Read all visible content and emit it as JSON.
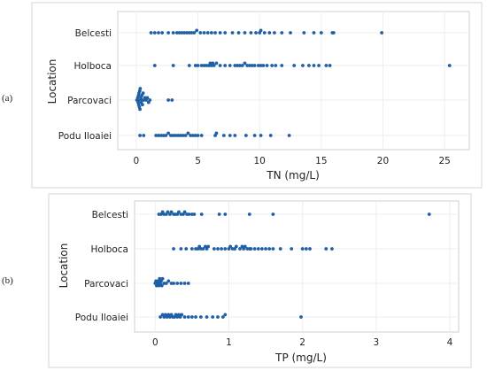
{
  "colors": {
    "points": "#1f5fa6"
  },
  "chart_data": [
    {
      "type": "scatter",
      "panel_label": "(a)",
      "xlabel": "TN (mg/L)",
      "ylabel": "Location",
      "xlim": [
        -1.5,
        27
      ],
      "xticks": [
        "0",
        "5",
        "10",
        "15",
        "20",
        "25"
      ],
      "categories": [
        "Belcesti",
        "Holboca",
        "Parcovaci",
        "Podu Iloaiei"
      ],
      "grid": true,
      "series": [
        {
          "category": "Belcesti",
          "values": [
            1.2,
            1.5,
            1.8,
            2.1,
            2.6,
            3.0,
            3.3,
            3.5,
            3.7,
            3.9,
            4.1,
            4.3,
            4.5,
            4.7,
            4.9,
            5.2,
            5.5,
            5.8,
            6.1,
            6.4,
            6.8,
            7.2,
            7.8,
            8.3,
            8.8,
            9.3,
            9.7,
            10.0,
            10.1,
            10.4,
            10.8,
            11.2,
            11.8,
            12.5,
            13.6,
            14.4,
            15.0,
            15.9,
            16.0,
            19.9
          ]
        },
        {
          "category": "Holboca",
          "values": [
            1.5,
            3.0,
            4.3,
            4.8,
            5.0,
            5.3,
            5.5,
            5.7,
            5.9,
            6.0,
            6.1,
            6.2,
            6.3,
            6.5,
            6.8,
            7.2,
            7.6,
            8.0,
            8.2,
            8.4,
            8.6,
            8.8,
            9.0,
            9.2,
            9.4,
            9.6,
            9.9,
            10.1,
            10.3,
            10.6,
            11.0,
            11.3,
            11.8,
            12.8,
            13.5,
            14.0,
            14.4,
            14.8,
            15.4,
            15.7,
            25.4
          ]
        },
        {
          "category": "Parcovaci",
          "values": [
            0.05,
            0.1,
            0.12,
            0.15,
            0.18,
            0.2,
            0.22,
            0.25,
            0.28,
            0.3,
            0.32,
            0.35,
            0.38,
            0.4,
            0.45,
            0.5,
            0.55,
            0.6,
            0.7,
            0.8,
            0.9,
            1.0,
            1.1,
            2.6,
            2.9
          ]
        },
        {
          "category": "Podu Iloaiei",
          "values": [
            0.3,
            0.6,
            1.6,
            1.8,
            2.0,
            2.2,
            2.4,
            2.6,
            2.8,
            3.0,
            3.2,
            3.4,
            3.6,
            3.8,
            4.0,
            4.2,
            4.4,
            4.6,
            4.8,
            5.0,
            5.3,
            6.4,
            6.5,
            7.1,
            7.6,
            8.0,
            8.9,
            9.6,
            10.1,
            10.9,
            12.4
          ]
        }
      ]
    },
    {
      "type": "scatter",
      "panel_label": "(b)",
      "xlabel": "TP (mg/L)",
      "ylabel": "Location",
      "xlim": [
        -0.28,
        4.12
      ],
      "xticks": [
        "0",
        "1",
        "2",
        "3",
        "4"
      ],
      "categories": [
        "Belcesti",
        "Holboca",
        "Parcovaci",
        "Podu Iloaiei"
      ],
      "grid": true,
      "series": [
        {
          "category": "Belcesti",
          "values": [
            0.05,
            0.08,
            0.1,
            0.12,
            0.15,
            0.17,
            0.2,
            0.22,
            0.25,
            0.27,
            0.3,
            0.32,
            0.35,
            0.38,
            0.4,
            0.43,
            0.46,
            0.5,
            0.53,
            0.63,
            0.87,
            0.95,
            1.28,
            1.6,
            3.72
          ]
        },
        {
          "category": "Holboca",
          "values": [
            0.25,
            0.35,
            0.42,
            0.5,
            0.55,
            0.58,
            0.6,
            0.62,
            0.65,
            0.68,
            0.7,
            0.72,
            0.8,
            0.85,
            0.9,
            0.95,
            1.0,
            1.02,
            1.05,
            1.08,
            1.1,
            1.15,
            1.18,
            1.2,
            1.22,
            1.25,
            1.28,
            1.3,
            1.35,
            1.4,
            1.45,
            1.5,
            1.55,
            1.6,
            1.7,
            1.85,
            2.0,
            2.05,
            2.1,
            2.32,
            2.4
          ]
        },
        {
          "category": "Parcovaci",
          "values": [
            0.0,
            0.01,
            0.02,
            0.03,
            0.04,
            0.05,
            0.06,
            0.07,
            0.08,
            0.09,
            0.1,
            0.12,
            0.15,
            0.18,
            0.22,
            0.25,
            0.3,
            0.35,
            0.4,
            0.45
          ]
        },
        {
          "category": "Podu Iloaiei",
          "values": [
            0.07,
            0.1,
            0.12,
            0.14,
            0.16,
            0.18,
            0.2,
            0.22,
            0.24,
            0.26,
            0.28,
            0.3,
            0.32,
            0.34,
            0.36,
            0.4,
            0.45,
            0.5,
            0.55,
            0.62,
            0.7,
            0.78,
            0.85,
            0.92,
            0.95,
            1.98
          ]
        }
      ]
    }
  ]
}
